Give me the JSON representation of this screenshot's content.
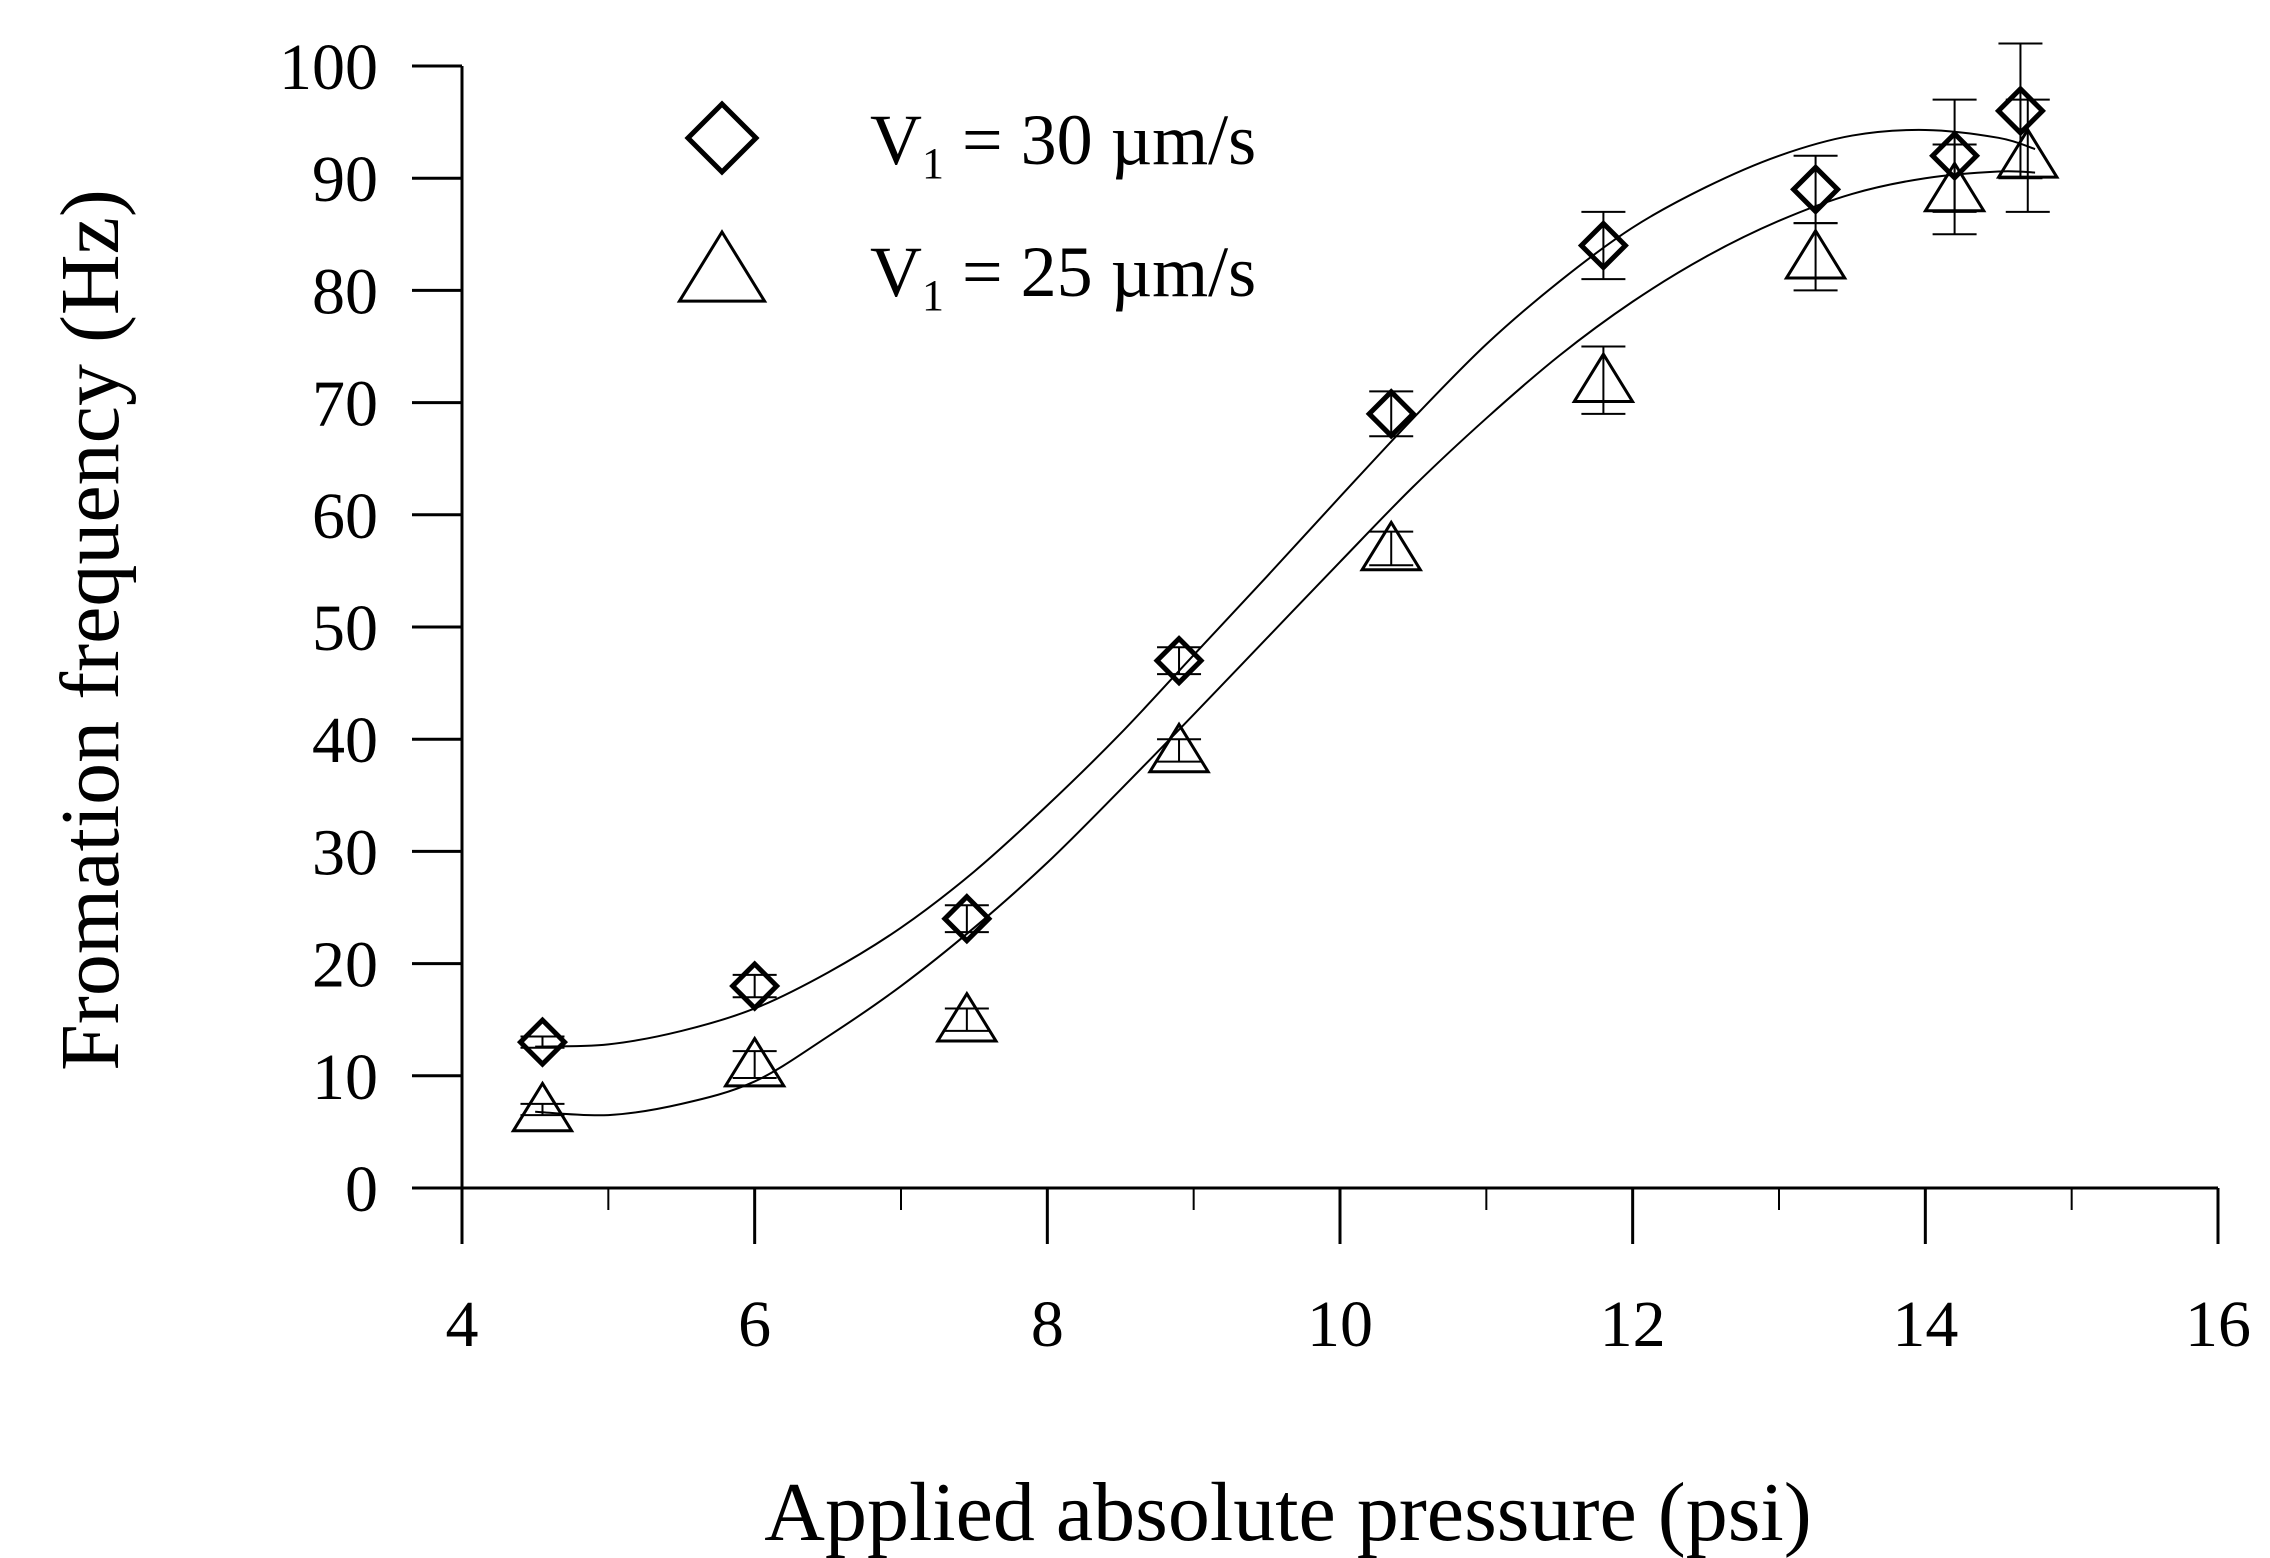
{
  "chart_data": {
    "type": "scatter",
    "xlabel": "Applied absolute pressure (psi)",
    "ylabel": "Fromation frequency (Hz)",
    "xlim": [
      4,
      16
    ],
    "ylim": [
      0,
      100
    ],
    "x_ticks": [
      4,
      6,
      8,
      10,
      12,
      14,
      16
    ],
    "y_ticks": [
      0,
      10,
      20,
      30,
      40,
      50,
      60,
      70,
      80,
      90,
      100
    ],
    "grid": false,
    "legend": {
      "position": "top-left",
      "entries": [
        {
          "marker": "diamond",
          "prefix": "V",
          "subscript": "1",
          "suffix": " = 30 µm/s"
        },
        {
          "marker": "triangle",
          "prefix": "V",
          "subscript": "1",
          "suffix": " = 25 µm/s"
        }
      ]
    },
    "series": [
      {
        "name": "V1 = 30 µm/s",
        "marker": "diamond",
        "x": [
          4.55,
          6.0,
          7.45,
          8.9,
          10.35,
          11.8,
          13.25,
          14.2,
          14.65
        ],
        "y": [
          13,
          18,
          24,
          47,
          69,
          84,
          89,
          92,
          96
        ],
        "error": [
          0.5,
          1,
          1.2,
          1.2,
          2,
          3,
          3,
          5,
          6
        ],
        "fit_curve": {
          "x": [
            4.5,
            5.0,
            5.5,
            6.0,
            6.5,
            7.0,
            7.5,
            8.0,
            8.5,
            9.0,
            9.5,
            10.0,
            10.5,
            11.0,
            11.5,
            12.0,
            12.5,
            13.0,
            13.5,
            14.0,
            14.5,
            14.75
          ],
          "y": [
            12.6,
            12.8,
            14.0,
            16.0,
            19.2,
            23.2,
            28.2,
            34.1,
            40.5,
            47.5,
            54.5,
            61.6,
            68.6,
            75.2,
            80.8,
            85.6,
            89.2,
            92.0,
            93.8,
            94.3,
            93.6,
            92.6
          ]
        }
      },
      {
        "name": "V1 = 25 µm/s",
        "marker": "triangle",
        "x": [
          4.55,
          6.0,
          7.45,
          8.9,
          10.35,
          11.8,
          13.25,
          14.2,
          14.7
        ],
        "y": [
          7,
          11,
          15,
          39,
          57,
          72,
          83,
          89,
          92
        ],
        "error": [
          0.5,
          1.2,
          1,
          1,
          1.5,
          3,
          3,
          4,
          5
        ],
        "fit_curve": {
          "x": [
            4.5,
            5.0,
            5.5,
            6.0,
            6.5,
            7.0,
            7.5,
            8.0,
            8.5,
            9.0,
            9.5,
            10.0,
            10.5,
            11.0,
            11.5,
            12.0,
            12.5,
            13.0,
            13.5,
            14.0,
            14.5,
            14.75
          ],
          "y": [
            6.8,
            6.5,
            7.5,
            9.5,
            13.5,
            18.0,
            23.2,
            29.0,
            35.5,
            42.2,
            49.0,
            55.8,
            62.5,
            68.6,
            74.2,
            79.0,
            83.0,
            86.2,
            88.6,
            90.0,
            90.6,
            90.5
          ]
        }
      }
    ]
  }
}
